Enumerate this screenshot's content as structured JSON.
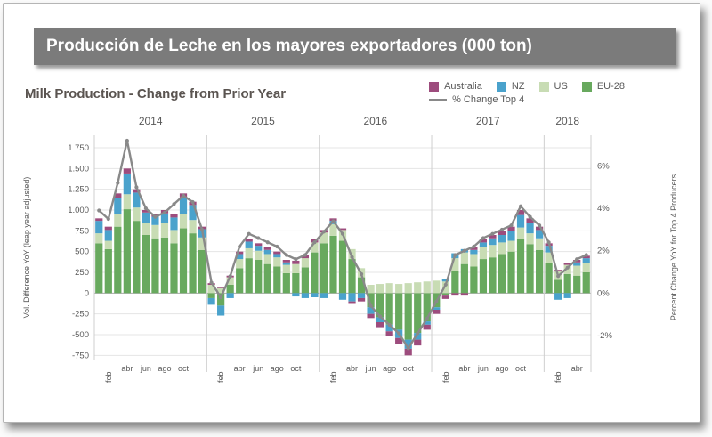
{
  "header": {
    "title": "Producción de Leche en los mayores exportadores (000 ton)",
    "bar_color": "#7b7b7b"
  },
  "chart": {
    "title": "Milk Production - Change from Prior Year",
    "title_color": "#5a5450",
    "axis_text_color": "#595959",
    "gridline_color": "#e4e4e4",
    "zero_line_color": "#a8a8a8",
    "year_line_color": "#cfcfcf"
  },
  "chart_data": {
    "type": "bar",
    "subtype": "stacked-bar-with-line",
    "title": "Milk Production - Change from Prior Year",
    "ylabel_left": "Vol. Difference YoY (leap year adjusted)",
    "ylabel_right": "Percent Change YoY for Top 4 Producers",
    "ylim_left": [
      -800,
      1900
    ],
    "percent_unit": 255,
    "legend_position": "top-right",
    "grid": true,
    "x": [
      "2014-01",
      "2014-02",
      "2014-03",
      "2014-04",
      "2014-05",
      "2014-06",
      "2014-07",
      "2014-08",
      "2014-09",
      "2014-10",
      "2014-11",
      "2014-12",
      "2015-01",
      "2015-02",
      "2015-03",
      "2015-04",
      "2015-05",
      "2015-06",
      "2015-07",
      "2015-08",
      "2015-09",
      "2015-10",
      "2015-11",
      "2015-12",
      "2016-01",
      "2016-02",
      "2016-03",
      "2016-04",
      "2016-05",
      "2016-06",
      "2016-07",
      "2016-08",
      "2016-09",
      "2016-10",
      "2016-11",
      "2016-12",
      "2017-01",
      "2017-02",
      "2017-03",
      "2017-04",
      "2017-05",
      "2017-06",
      "2017-07",
      "2017-08",
      "2017-09",
      "2017-10",
      "2017-11",
      "2017-12",
      "2018-01",
      "2018-02",
      "2018-03",
      "2018-04",
      "2018-05"
    ],
    "years": [
      {
        "label": "2014",
        "months": 12
      },
      {
        "label": "2015",
        "months": 12
      },
      {
        "label": "2016",
        "months": 12
      },
      {
        "label": "2017",
        "months": 12
      },
      {
        "label": "2018",
        "months": 5
      }
    ],
    "month_ticks": [
      {
        "month_index": 1,
        "label": "feb",
        "rotated": true
      },
      {
        "month_index": 3,
        "label": "abr",
        "rotated": false
      },
      {
        "month_index": 5,
        "label": "jun",
        "rotated": false
      },
      {
        "month_index": 7,
        "label": "ago",
        "rotated": false
      },
      {
        "month_index": 9,
        "label": "oct",
        "rotated": false
      }
    ],
    "yticks_left": [
      {
        "label": "1.750",
        "value": 1750
      },
      {
        "label": "1.500",
        "value": 1500
      },
      {
        "label": "1.250",
        "value": 1250
      },
      {
        "label": "1.000",
        "value": 1000
      },
      {
        "label": "750",
        "value": 750
      },
      {
        "label": "500",
        "value": 500
      },
      {
        "label": "250",
        "value": 250
      },
      {
        "label": "0",
        "value": 0
      },
      {
        "label": "-250",
        "value": -250
      },
      {
        "label": "-500",
        "value": -500
      },
      {
        "label": "-750",
        "value": -750
      }
    ],
    "yticks_right": [
      {
        "label": "6%",
        "value": 6
      },
      {
        "label": "4%",
        "value": 4
      },
      {
        "label": "2%",
        "value": 2
      },
      {
        "label": "0%",
        "value": 0
      },
      {
        "label": "-2%",
        "value": -2
      }
    ],
    "series": [
      {
        "name": "EU-28",
        "color": "#68a95e",
        "values": [
          600,
          530,
          800,
          1010,
          870,
          700,
          660,
          670,
          600,
          780,
          720,
          520,
          -60,
          -150,
          100,
          300,
          420,
          400,
          350,
          320,
          240,
          240,
          310,
          490,
          600,
          690,
          630,
          410,
          190,
          -170,
          -290,
          -380,
          -440,
          -560,
          -480,
          -340,
          -170,
          -30,
          270,
          350,
          320,
          410,
          430,
          470,
          500,
          650,
          590,
          520,
          360,
          160,
          230,
          210,
          250
        ]
      },
      {
        "name": "US",
        "color": "#c8dcb4",
        "values": [
          120,
          100,
          150,
          180,
          160,
          150,
          160,
          170,
          160,
          170,
          160,
          150,
          100,
          60,
          90,
          110,
          120,
          110,
          120,
          110,
          100,
          110,
          110,
          120,
          130,
          140,
          130,
          120,
          110,
          100,
          110,
          120,
          110,
          120,
          130,
          140,
          150,
          140,
          150,
          140,
          150,
          140,
          150,
          140,
          130,
          140,
          130,
          140,
          130,
          100,
          110,
          120,
          110
        ]
      },
      {
        "name": "NZ",
        "color": "#4aa2cc",
        "values": [
          150,
          130,
          200,
          250,
          180,
          120,
          100,
          120,
          150,
          200,
          180,
          100,
          -80,
          -120,
          -60,
          60,
          80,
          60,
          50,
          40,
          30,
          -40,
          -60,
          -50,
          -60,
          40,
          -80,
          -100,
          -60,
          -80,
          -60,
          -80,
          -100,
          -110,
          -80,
          -40,
          -30,
          30,
          60,
          40,
          50,
          60,
          80,
          90,
          120,
          150,
          130,
          100,
          80,
          -80,
          -60,
          40,
          60
        ]
      },
      {
        "name": "Australia",
        "color": "#9d4c7d",
        "values": [
          30,
          40,
          50,
          60,
          40,
          30,
          30,
          40,
          40,
          50,
          40,
          30,
          20,
          10,
          20,
          30,
          30,
          30,
          30,
          30,
          30,
          40,
          40,
          40,
          30,
          30,
          20,
          -30,
          -40,
          -50,
          -60,
          -60,
          -70,
          -80,
          -70,
          -60,
          -50,
          -40,
          -30,
          -30,
          30,
          40,
          40,
          50,
          50,
          60,
          50,
          40,
          30,
          20,
          20,
          30,
          30
        ]
      }
    ],
    "line_series": {
      "name": "% Change  Top 4",
      "color": "#898989",
      "values_percent": [
        3.9,
        3.5,
        5.2,
        7.2,
        5.0,
        4.0,
        3.6,
        3.8,
        4.2,
        4.6,
        4.3,
        3.0,
        0.5,
        -0.2,
        0.8,
        2.2,
        2.8,
        2.6,
        2.4,
        2.2,
        1.8,
        1.6,
        1.8,
        2.4,
        2.9,
        3.4,
        2.8,
        1.7,
        0.9,
        -0.6,
        -1.1,
        -1.5,
        -1.9,
        -2.6,
        -1.9,
        -1.2,
        -0.4,
        0.4,
        1.8,
        2.0,
        2.2,
        2.6,
        2.8,
        3.0,
        3.2,
        4.1,
        3.6,
        3.2,
        2.4,
        0.8,
        1.2,
        1.6,
        1.8
      ]
    }
  }
}
